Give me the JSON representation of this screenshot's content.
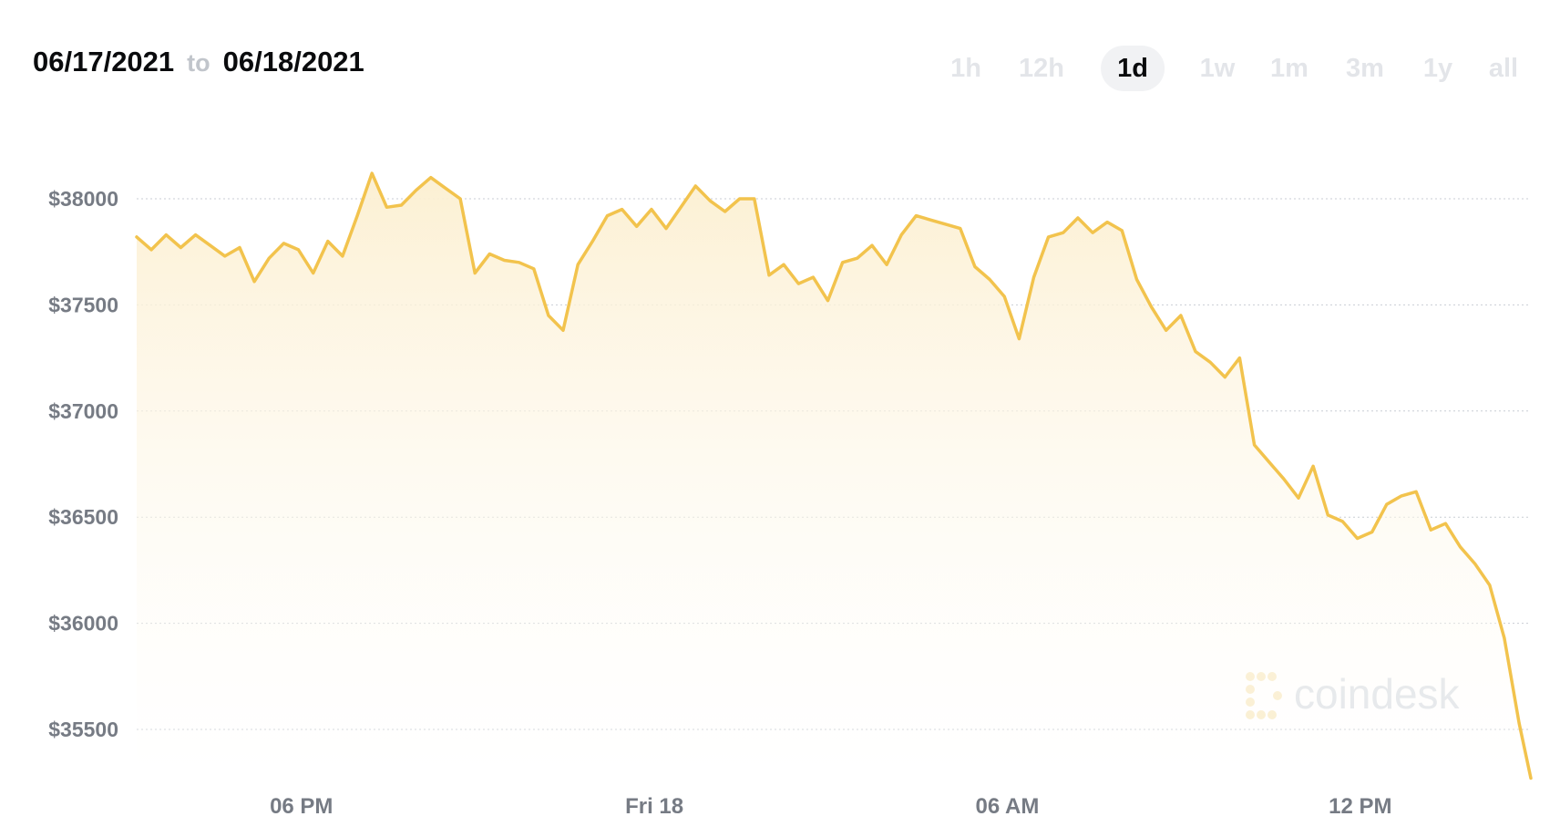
{
  "header": {
    "start_date": "06/17/2021",
    "separator": "to",
    "end_date": "06/18/2021"
  },
  "range_selector": {
    "options": [
      "1h",
      "12h",
      "1d",
      "1w",
      "1m",
      "3m",
      "1y",
      "all"
    ],
    "selected": "1d"
  },
  "watermark": {
    "text": "coindesk"
  },
  "colors": {
    "line": "#f2c34d",
    "fill_top": "#fcefd0",
    "grid": "#c9cdd4",
    "tick_text": "#767b84"
  },
  "chart_data": {
    "type": "area",
    "ylim": [
      35250,
      38350
    ],
    "y_ticks": [
      38000,
      37500,
      37000,
      36500,
      36000,
      35500
    ],
    "y_tick_labels": [
      "$38000",
      "$37500",
      "$37000",
      "$36500",
      "$36000",
      "$35500"
    ],
    "x_ticks": [
      {
        "x": "2021-06-17T18:00",
        "label": "06 PM"
      },
      {
        "x": "2021-06-18T00:00",
        "label": "Fri 18"
      },
      {
        "x": "2021-06-18T06:00",
        "label": "06 AM"
      },
      {
        "x": "2021-06-18T12:00",
        "label": "12 PM"
      }
    ],
    "xlim": [
      "2021-06-17T15:12",
      "2021-06-18T14:54"
    ],
    "grid": true,
    "legend": "none",
    "series": [
      {
        "x": [
          "2021-06-17T15:12",
          "2021-06-17T15:27",
          "2021-06-17T15:42",
          "2021-06-17T15:57",
          "2021-06-17T16:12",
          "2021-06-17T16:27",
          "2021-06-17T16:42",
          "2021-06-17T16:57",
          "2021-06-17T17:12",
          "2021-06-17T17:27",
          "2021-06-17T17:42",
          "2021-06-17T17:57",
          "2021-06-17T18:12",
          "2021-06-17T18:27",
          "2021-06-17T18:42",
          "2021-06-17T18:57",
          "2021-06-17T19:12",
          "2021-06-17T19:27",
          "2021-06-17T19:42",
          "2021-06-17T19:57",
          "2021-06-17T20:12",
          "2021-06-17T20:27",
          "2021-06-17T20:42",
          "2021-06-17T20:57",
          "2021-06-17T21:12",
          "2021-06-17T21:27",
          "2021-06-17T21:42",
          "2021-06-17T21:57",
          "2021-06-17T22:12",
          "2021-06-17T22:27",
          "2021-06-17T22:42",
          "2021-06-17T22:57",
          "2021-06-17T23:12",
          "2021-06-17T23:27",
          "2021-06-17T23:42",
          "2021-06-17T23:57",
          "2021-06-18T00:12",
          "2021-06-18T00:27",
          "2021-06-18T00:42",
          "2021-06-18T00:57",
          "2021-06-18T01:12",
          "2021-06-18T01:27",
          "2021-06-18T01:42",
          "2021-06-18T01:57",
          "2021-06-18T02:12",
          "2021-06-18T02:27",
          "2021-06-18T02:42",
          "2021-06-18T02:57",
          "2021-06-18T03:12",
          "2021-06-18T03:27",
          "2021-06-18T03:42",
          "2021-06-18T03:57",
          "2021-06-18T04:12",
          "2021-06-18T04:27",
          "2021-06-18T04:42",
          "2021-06-18T04:57",
          "2021-06-18T05:12",
          "2021-06-18T05:27",
          "2021-06-18T05:42",
          "2021-06-18T05:57",
          "2021-06-18T06:12",
          "2021-06-18T06:27",
          "2021-06-18T06:42",
          "2021-06-18T06:57",
          "2021-06-18T07:12",
          "2021-06-18T07:27",
          "2021-06-18T07:42",
          "2021-06-18T07:57",
          "2021-06-18T08:12",
          "2021-06-18T08:27",
          "2021-06-18T08:42",
          "2021-06-18T08:57",
          "2021-06-18T09:12",
          "2021-06-18T09:27",
          "2021-06-18T09:42",
          "2021-06-18T09:57",
          "2021-06-18T10:12",
          "2021-06-18T10:27",
          "2021-06-18T10:42",
          "2021-06-18T10:57",
          "2021-06-18T11:12",
          "2021-06-18T11:27",
          "2021-06-18T11:42",
          "2021-06-18T11:57",
          "2021-06-18T12:12",
          "2021-06-18T12:27",
          "2021-06-18T12:42",
          "2021-06-18T12:57",
          "2021-06-18T13:12",
          "2021-06-18T13:27",
          "2021-06-18T13:42",
          "2021-06-18T13:57",
          "2021-06-18T14:12",
          "2021-06-18T14:27",
          "2021-06-18T14:42",
          "2021-06-18T14:54"
        ],
        "values": [
          37820,
          37760,
          37830,
          37770,
          37830,
          37780,
          37730,
          37770,
          37610,
          37720,
          37790,
          37760,
          37650,
          37800,
          37730,
          37920,
          38120,
          37960,
          37970,
          38040,
          38100,
          38050,
          38000,
          37650,
          37740,
          37710,
          37700,
          37670,
          37450,
          37380,
          37690,
          37800,
          37920,
          37950,
          37870,
          37950,
          37860,
          37960,
          38060,
          37990,
          37940,
          38000,
          38000,
          37640,
          37690,
          37600,
          37630,
          37520,
          37700,
          37720,
          37780,
          37690,
          37830,
          37920,
          37900,
          37880,
          37860,
          37680,
          37620,
          37540,
          37340,
          37630,
          37820,
          37840,
          37910,
          37840,
          37890,
          37850,
          37620,
          37490,
          37380,
          37450,
          37280,
          37230,
          37160,
          37250,
          36840,
          36760,
          36680,
          36590,
          36740,
          36510,
          36480,
          36400,
          36430,
          36560,
          36600,
          36620,
          36440,
          36470,
          36360,
          36280,
          36180,
          35930,
          35530,
          35270
        ]
      }
    ]
  }
}
